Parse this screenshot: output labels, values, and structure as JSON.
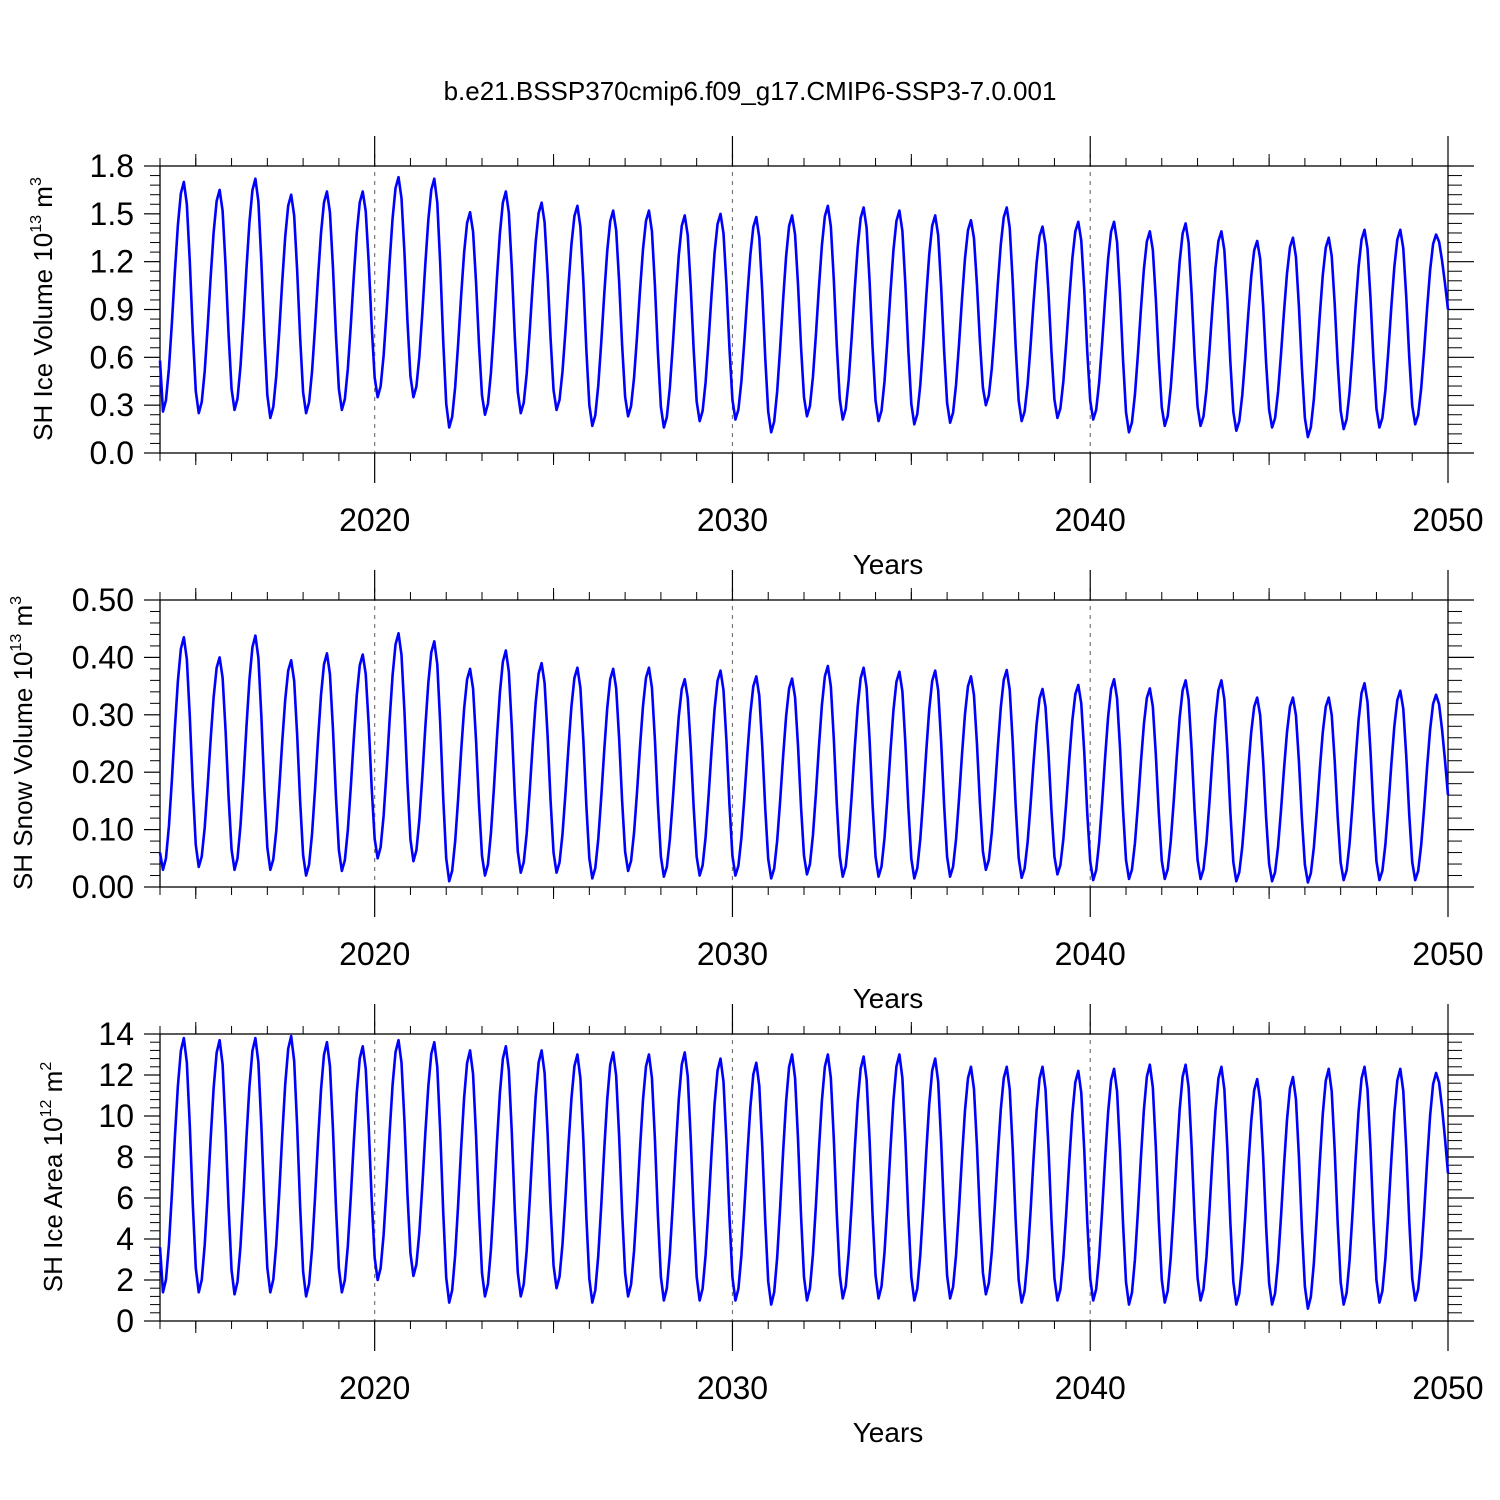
{
  "title": "b.e21.BSSP370cmip6.f09_g17.CMIP6-SSP3-7.0.001",
  "colors": {
    "series": "#0000ff",
    "axis": "#000000",
    "refline": "#777777"
  },
  "chart_data": [
    {
      "type": "line",
      "ylabel": {
        "main": "SH Ice Volume 10",
        "exp": "13",
        "unit": " m",
        "unit_exp": "3"
      },
      "xlabel": "Years",
      "xlim": [
        2014.0,
        2050.0
      ],
      "ylim": [
        0.0,
        1.8
      ],
      "yticks": [
        0.0,
        0.3,
        0.6,
        0.9,
        1.2,
        1.5,
        1.8
      ],
      "ytick_labels": [
        "0.0",
        "0.3",
        "0.6",
        "0.9",
        "1.2",
        "1.5",
        "1.8"
      ],
      "xticks": [
        2020,
        2030,
        2040,
        2050
      ],
      "xtick_labels": [
        "2020",
        "2030",
        "2040",
        "2050"
      ],
      "ref_lines_x": [
        2020,
        2030,
        2040
      ],
      "series": [
        {
          "name": "SH Ice Volume",
          "start_year": 2014,
          "start_month": 1,
          "maxima": [
            1.7,
            1.65,
            1.72,
            1.62,
            1.64,
            1.64,
            1.73,
            1.72,
            1.51,
            1.64,
            1.57,
            1.55,
            1.52,
            1.52,
            1.49,
            1.5,
            1.48,
            1.49,
            1.55,
            1.54,
            1.52,
            1.49,
            1.46,
            1.54,
            1.42,
            1.45,
            1.45,
            1.39,
            1.44,
            1.39,
            1.33,
            1.35,
            1.35,
            1.4,
            1.4,
            1.37
          ],
          "minima": [
            0.26,
            0.25,
            0.27,
            0.22,
            0.25,
            0.27,
            0.35,
            0.35,
            0.16,
            0.24,
            0.25,
            0.27,
            0.17,
            0.23,
            0.16,
            0.2,
            0.21,
            0.13,
            0.23,
            0.21,
            0.2,
            0.18,
            0.19,
            0.3,
            0.2,
            0.22,
            0.21,
            0.13,
            0.17,
            0.17,
            0.14,
            0.16,
            0.1,
            0.15,
            0.16,
            0.18
          ],
          "first_value": 0.58,
          "last_value": 0.9
        }
      ]
    },
    {
      "type": "line",
      "ylabel": {
        "main": "SH Snow Volume 10",
        "exp": "13",
        "unit": " m",
        "unit_exp": "3"
      },
      "xlabel": "Years",
      "xlim": [
        2014.0,
        2050.0
      ],
      "ylim": [
        0.0,
        0.5
      ],
      "yticks": [
        0.0,
        0.1,
        0.2,
        0.3,
        0.4,
        0.5
      ],
      "ytick_labels": [
        "0.00",
        "0.10",
        "0.20",
        "0.30",
        "0.40",
        "0.50"
      ],
      "xticks": [
        2020,
        2030,
        2040,
        2050
      ],
      "xtick_labels": [
        "2020",
        "2030",
        "2040",
        "2050"
      ],
      "ref_lines_x": [
        2020,
        2030,
        2040
      ],
      "series": [
        {
          "name": "SH Snow Volume",
          "start_year": 2014,
          "start_month": 1,
          "maxima": [
            0.435,
            0.4,
            0.438,
            0.395,
            0.407,
            0.405,
            0.442,
            0.428,
            0.38,
            0.412,
            0.39,
            0.382,
            0.38,
            0.382,
            0.362,
            0.377,
            0.367,
            0.363,
            0.385,
            0.382,
            0.375,
            0.377,
            0.367,
            0.378,
            0.345,
            0.352,
            0.362,
            0.346,
            0.36,
            0.36,
            0.33,
            0.33,
            0.33,
            0.355,
            0.342,
            0.335
          ],
          "minima": [
            0.03,
            0.035,
            0.03,
            0.03,
            0.02,
            0.028,
            0.05,
            0.045,
            0.01,
            0.02,
            0.025,
            0.025,
            0.015,
            0.028,
            0.018,
            0.02,
            0.02,
            0.015,
            0.022,
            0.018,
            0.018,
            0.015,
            0.018,
            0.03,
            0.016,
            0.022,
            0.012,
            0.014,
            0.014,
            0.014,
            0.01,
            0.01,
            0.008,
            0.012,
            0.012,
            0.012
          ],
          "first_value": 0.06,
          "last_value": 0.16
        }
      ]
    },
    {
      "type": "line",
      "ylabel": {
        "main": "SH Ice Area 10",
        "exp": "12",
        "unit": " m",
        "unit_exp": "2"
      },
      "xlabel": "Years",
      "xlim": [
        2014.0,
        2050.0
      ],
      "ylim": [
        0,
        14
      ],
      "yticks": [
        0,
        2,
        4,
        6,
        8,
        10,
        12,
        14
      ],
      "ytick_labels": [
        "0",
        "2",
        "4",
        "6",
        "8",
        "10",
        "12",
        "14"
      ],
      "xticks": [
        2020,
        2030,
        2040,
        2050
      ],
      "xtick_labels": [
        "2020",
        "2030",
        "2040",
        "2050"
      ],
      "ref_lines_x": [
        2020,
        2030,
        2040
      ],
      "series": [
        {
          "name": "SH Ice Area",
          "start_year": 2014,
          "start_month": 1,
          "maxima": [
            13.8,
            13.7,
            13.8,
            13.9,
            13.6,
            13.4,
            13.7,
            13.6,
            13.2,
            13.4,
            13.2,
            13.0,
            13.1,
            13.0,
            13.1,
            12.8,
            12.6,
            13.0,
            13.0,
            12.9,
            13.0,
            12.8,
            12.4,
            12.4,
            12.4,
            12.2,
            12.3,
            12.5,
            12.5,
            12.4,
            11.8,
            11.9,
            12.3,
            12.4,
            12.3,
            12.1
          ],
          "minima": [
            1.4,
            1.4,
            1.3,
            1.4,
            1.2,
            1.4,
            2.0,
            2.2,
            0.9,
            1.2,
            1.2,
            1.6,
            0.9,
            1.2,
            1.0,
            1.0,
            1.0,
            0.8,
            1.0,
            1.1,
            1.1,
            1.0,
            1.1,
            1.3,
            0.9,
            1.0,
            1.0,
            0.8,
            0.9,
            1.0,
            0.8,
            0.8,
            0.6,
            0.8,
            0.9,
            1.0
          ],
          "first_value": 3.6,
          "last_value": 7.2
        }
      ]
    }
  ]
}
